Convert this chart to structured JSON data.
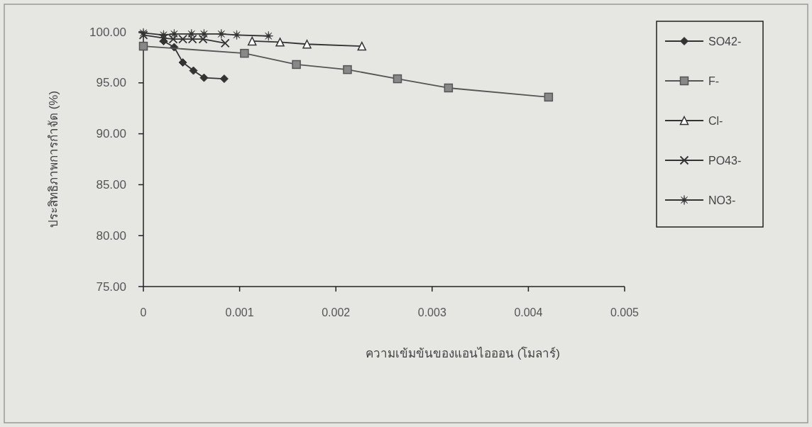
{
  "chart_data": {
    "type": "line",
    "xlabel": "ความเข้มข้นของแอนไอออน (โมลาร์)",
    "ylabel": "ประสิทธิภาพการกำจัด (%)",
    "xlim": [
      0,
      0.005
    ],
    "xticks": [
      0,
      0.001,
      0.002,
      0.003,
      0.004,
      0.005
    ],
    "ylim": [
      75,
      100
    ],
    "yticks": [
      {
        "value": 75,
        "label": "75.00"
      },
      {
        "value": 80,
        "label": "80.00"
      },
      {
        "value": 85,
        "label": "85.00"
      },
      {
        "value": 90,
        "label": "90.00"
      },
      {
        "value": 95,
        "label": "95.00"
      },
      {
        "value": 100,
        "label": "100.00"
      }
    ],
    "grid": false,
    "legend": "right",
    "series": [
      {
        "name": "SO42-",
        "color": "#333333",
        "marker": "diamond",
        "x": [
          0.00021,
          0.00032,
          0.00041,
          0.00052,
          0.00063,
          0.00084
        ],
        "values": [
          99.1,
          98.5,
          97.0,
          96.2,
          95.5,
          95.4
        ]
      },
      {
        "name": "F-",
        "color": "#555555",
        "marker": "square",
        "x": [
          0,
          0.00105,
          0.00159,
          0.00212,
          0.00264,
          0.00317,
          0.00421
        ],
        "values": [
          98.6,
          97.9,
          96.8,
          96.3,
          95.4,
          94.5,
          93.6
        ]
      },
      {
        "name": "Cl-",
        "color": "#333333",
        "marker": "triangle",
        "x": [
          0.00113,
          0.00142,
          0.0017,
          0.00227
        ],
        "values": [
          99.1,
          99.0,
          98.8,
          98.6
        ]
      },
      {
        "name": "PO43-",
        "color": "#333333",
        "marker": "cross",
        "x": [
          0,
          0.00021,
          0.00031,
          0.00041,
          0.00051,
          0.00062,
          0.00085
        ],
        "values": [
          99.7,
          99.4,
          99.3,
          99.3,
          99.3,
          99.3,
          98.9
        ]
      },
      {
        "name": "NO3-",
        "color": "#333333",
        "marker": "star",
        "x": [
          0,
          0.00021,
          0.00032,
          0.0005,
          0.00063,
          0.00081,
          0.00097,
          0.0013
        ],
        "values": [
          99.9,
          99.7,
          99.8,
          99.8,
          99.8,
          99.8,
          99.7,
          99.6
        ]
      }
    ]
  }
}
